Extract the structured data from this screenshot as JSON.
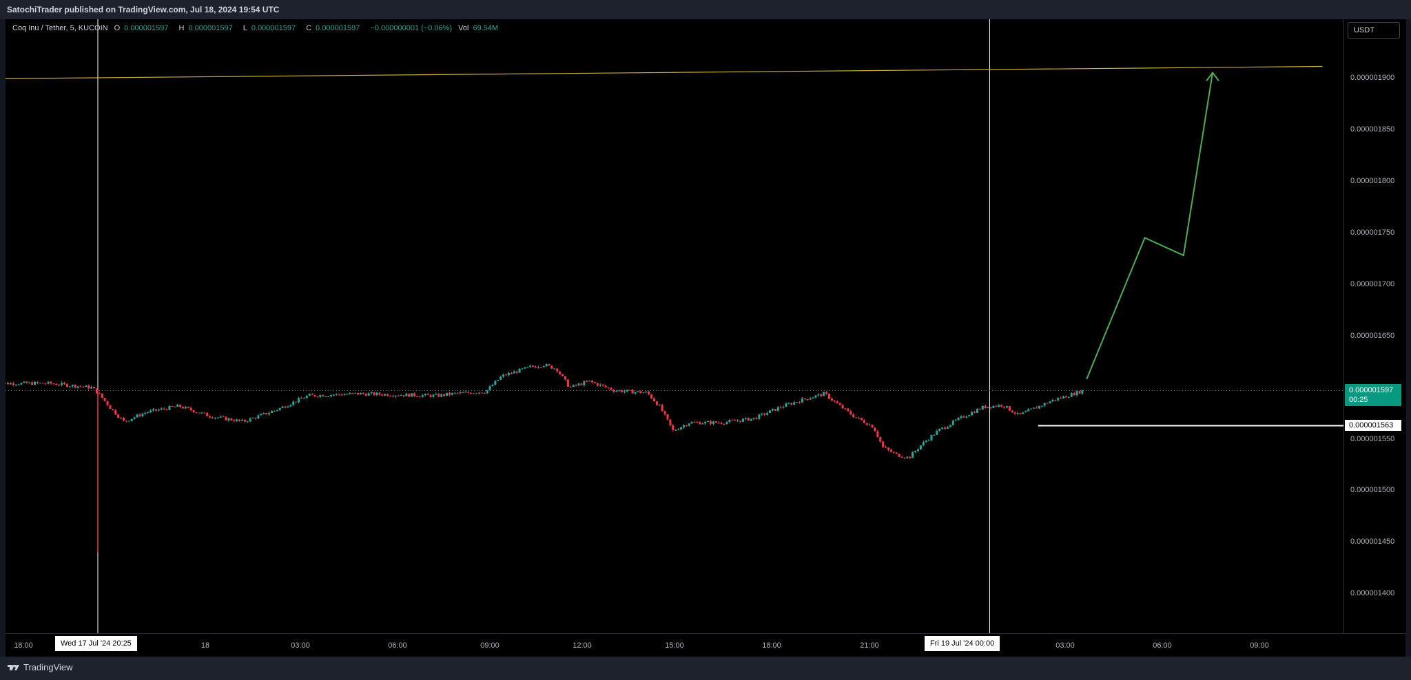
{
  "header": {
    "publish_note": "SatochiTrader published on TradingView.com, Jul 18, 2024 19:54 UTC"
  },
  "legend": {
    "symbol": "Coq Inu / Tether, 5, KUCOIN",
    "open_key": "O",
    "open": "0.000001597",
    "high_key": "H",
    "high": "0.000001597",
    "low_key": "L",
    "low": "0.000001597",
    "close_key": "C",
    "close": "0.000001597",
    "change": "−0.000000001 (−0.06%)",
    "vol_key": "Vol",
    "vol": "69.54M"
  },
  "currency_button": "USDT",
  "price_axis": {
    "labels": [
      "0.000001900",
      "0.000001850",
      "0.000001800",
      "0.000001750",
      "0.000001700",
      "0.000001650",
      "0.000001550",
      "0.000001500",
      "0.000001450",
      "0.000001400"
    ],
    "current_price": "0.000001597",
    "countdown": "00:25",
    "level_price": "0.000001563"
  },
  "time_axis": {
    "labels": [
      "18:00",
      "18",
      "03:00",
      "06:00",
      "09:00",
      "12:00",
      "15:00",
      "18:00",
      "21:00",
      "03:00",
      "06:00",
      "09:00"
    ],
    "cursor_left": "Wed 17 Jul '24   20:25",
    "cursor_right": "Fri 19 Jul '24   00:00"
  },
  "footer": {
    "logo_text": "TradingView"
  },
  "colors": {
    "up": "#26a69a",
    "down": "#f23645",
    "projection": "#4caf50",
    "trendline": "#c9b037",
    "level": "#ffffff"
  },
  "chart_data": {
    "type": "candlestick",
    "symbol": "Coq Inu / Tether",
    "interval": "5",
    "exchange": "KUCOIN",
    "ylim": [
      1.345e-06,
      1.955e-06
    ],
    "y_ticks": [
      1.4e-06,
      1.45e-06,
      1.5e-06,
      1.55e-06,
      1.6e-06,
      1.65e-06,
      1.7e-06,
      1.75e-06,
      1.8e-06,
      1.85e-06,
      1.9e-06
    ],
    "x_time_hours": [
      -3,
      0,
      3,
      6,
      9,
      12,
      15,
      18,
      21,
      24,
      27,
      30,
      33
    ],
    "price_path": [
      {
        "t": -3.2,
        "p": 1.604e-06
      },
      {
        "t": -1.5,
        "p": 1.604e-06
      },
      {
        "t": -0.2,
        "p": 1.6e-06
      },
      {
        "t": 0.0,
        "p": 1.595e-06
      },
      {
        "t": 0.4,
        "p": 1.58e-06
      },
      {
        "t": 0.8,
        "p": 1.567e-06
      },
      {
        "t": 1.5,
        "p": 1.576e-06
      },
      {
        "t": 2.5,
        "p": 1.582e-06
      },
      {
        "t": 3.5,
        "p": 1.572e-06
      },
      {
        "t": 4.5,
        "p": 1.567e-06
      },
      {
        "t": 5.5,
        "p": 1.578e-06
      },
      {
        "t": 6.5,
        "p": 1.592e-06
      },
      {
        "t": 8.0,
        "p": 1.594e-06
      },
      {
        "t": 10.5,
        "p": 1.592e-06
      },
      {
        "t": 11.0,
        "p": 1.594e-06
      },
      {
        "t": 12.0,
        "p": 1.596e-06
      },
      {
        "t": 12.5,
        "p": 1.611e-06
      },
      {
        "t": 13.4,
        "p": 1.62e-06
      },
      {
        "t": 13.8,
        "p": 1.622e-06
      },
      {
        "t": 14.2,
        "p": 1.618e-06
      },
      {
        "t": 14.6,
        "p": 1.6e-06
      },
      {
        "t": 15.2,
        "p": 1.606e-06
      },
      {
        "t": 16.0,
        "p": 1.597e-06
      },
      {
        "t": 17.0,
        "p": 1.595e-06
      },
      {
        "t": 17.4,
        "p": 1.581e-06
      },
      {
        "t": 17.8,
        "p": 1.558e-06
      },
      {
        "t": 18.3,
        "p": 1.566e-06
      },
      {
        "t": 19.3,
        "p": 1.566e-06
      },
      {
        "t": 20.3,
        "p": 1.57e-06
      },
      {
        "t": 21.2,
        "p": 1.582e-06
      },
      {
        "t": 22.0,
        "p": 1.59e-06
      },
      {
        "t": 22.5,
        "p": 1.594e-06
      },
      {
        "t": 22.8,
        "p": 1.586e-06
      },
      {
        "t": 23.4,
        "p": 1.572e-06
      },
      {
        "t": 24.0,
        "p": 1.562e-06
      },
      {
        "t": 24.3,
        "p": 1.542e-06
      },
      {
        "t": 24.7,
        "p": 1.535e-06
      },
      {
        "t": 25.1,
        "p": 1.532e-06
      },
      {
        "t": 25.5,
        "p": 1.545e-06
      },
      {
        "t": 26.0,
        "p": 1.558e-06
      },
      {
        "t": 26.8,
        "p": 1.572e-06
      },
      {
        "t": 27.4,
        "p": 1.581e-06
      },
      {
        "t": 28.0,
        "p": 1.583e-06
      },
      {
        "t": 28.5,
        "p": 1.573e-06
      },
      {
        "t": 29.0,
        "p": 1.58e-06
      },
      {
        "t": 29.5,
        "p": 1.587e-06
      },
      {
        "t": 30.0,
        "p": 1.592e-06
      },
      {
        "t": 30.5,
        "p": 1.597e-06
      }
    ],
    "wick_events": [
      {
        "t": 0.0,
        "low": 1.44e-06,
        "high": 1.598e-06
      }
    ],
    "current_price": 1.597e-06,
    "horizontal_level": {
      "price": 1.563e-06,
      "from_t": 29.1
    },
    "trendline": [
      {
        "t": -3.5,
        "p": 1.899e-06
      },
      {
        "t": 37.9,
        "p": 1.911e-06
      }
    ],
    "projection_path": [
      {
        "t": 30.6,
        "p": 1.608e-06
      },
      {
        "t": 32.4,
        "p": 1.745e-06
      },
      {
        "t": 33.6,
        "p": 1.728e-06
      },
      {
        "t": 34.5,
        "p": 1.905e-06
      }
    ],
    "vertical_markers_t": [
      0.0,
      27.6
    ]
  }
}
